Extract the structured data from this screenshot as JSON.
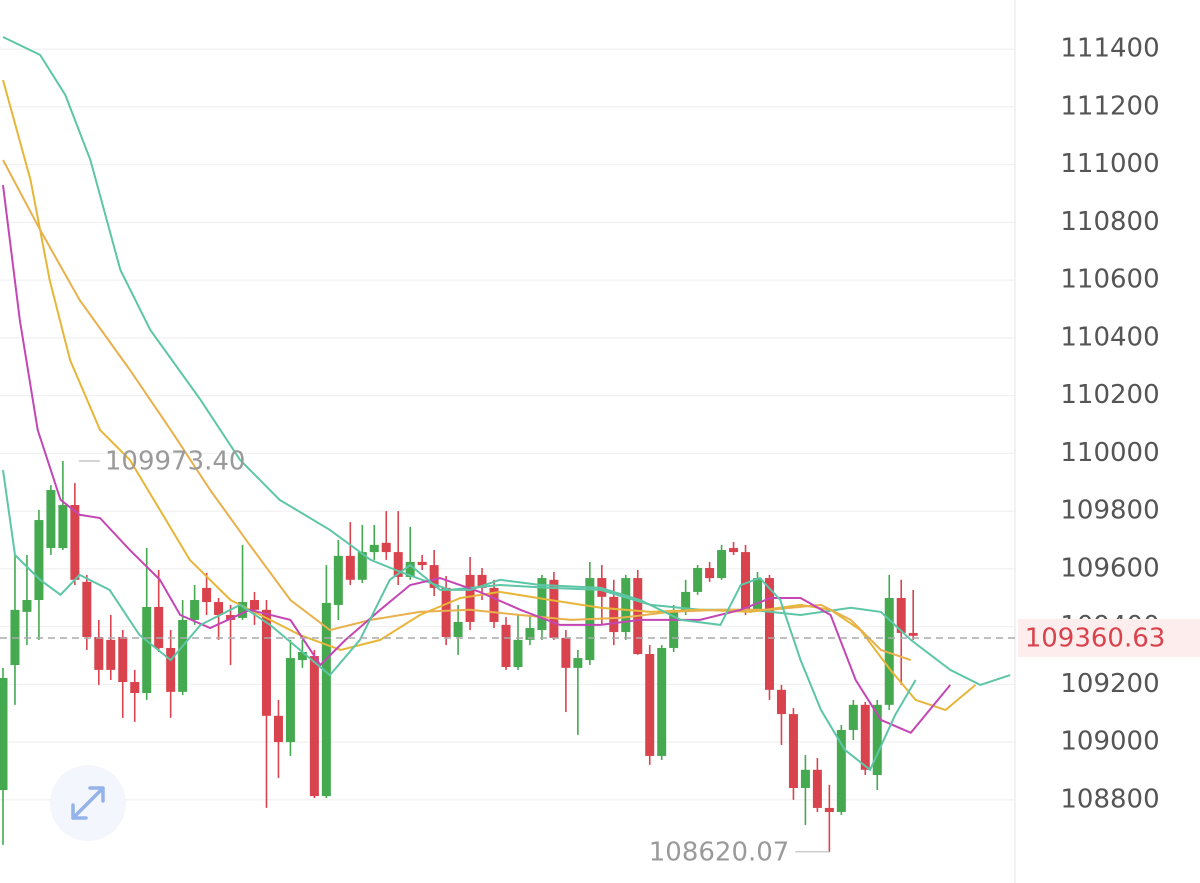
{
  "chart_data": {
    "type": "candlestick",
    "open": [
      108834,
      109267,
      109451,
      109492,
      109672,
      109672,
      109821,
      109555,
      109364,
      109354,
      109364,
      109208,
      109170,
      109468,
      109326,
      109174,
      109423,
      109534,
      109485,
      109440,
      109430,
      109492,
      109458,
      109091,
      109000,
      109284,
      109298,
      108813,
      109475,
      109645,
      109562,
      109658,
      109690,
      109658,
      109572,
      109624,
      109613,
      109534,
      109364,
      109579,
      109579,
      109534,
      109406,
      109260,
      109354,
      109388,
      109562,
      109361,
      109257,
      109284,
      109568,
      109503,
      109381,
      109568,
      109305,
      108952,
      109326,
      109451,
      109520,
      109603,
      109568,
      109672,
      109658,
      109458,
      109568,
      109181,
      109097,
      108841,
      108904,
      108772,
      108758,
      109042,
      109129,
      108886,
      109129,
      109499,
      109378
    ],
    "high": [
      109257,
      109648,
      109648,
      109804,
      109890,
      109973.4,
      109897,
      109579,
      109423,
      109440,
      109388,
      109250,
      109672,
      109596,
      109388,
      109492,
      109544,
      109586,
      109499,
      109475,
      109683,
      109520,
      109492,
      109146,
      109354,
      109354,
      109319,
      109613,
      109700,
      109762,
      109752,
      109752,
      109800,
      109800,
      109745,
      109648,
      109665,
      109575,
      109475,
      109641,
      109603,
      109562,
      109433,
      109440,
      109440,
      109579,
      109589,
      109388,
      109319,
      109624,
      109613,
      109562,
      109579,
      109596,
      109336,
      109336,
      109475,
      109562,
      109613,
      109624,
      109683,
      109693,
      109683,
      109589,
      109579,
      109198,
      109118,
      108955,
      108945,
      108852,
      109059,
      109146,
      109139,
      109146,
      109579,
      109562,
      109527
    ],
    "low": [
      108644,
      109129,
      109336,
      109354,
      109648,
      109665,
      109544,
      109319,
      109198,
      109215,
      109084,
      109070,
      109146,
      109312,
      109084,
      109163,
      109406,
      109440,
      109354,
      109267,
      109423,
      109406,
      108772,
      108876,
      108952,
      109257,
      108806,
      108806,
      109423,
      109544,
      109551,
      109631,
      109631,
      109544,
      109562,
      109596,
      109506,
      109336,
      109302,
      109388,
      109492,
      109395,
      109250,
      109250,
      109336,
      109354,
      109354,
      109104,
      109025,
      109267,
      109406,
      109336,
      109354,
      109302,
      108921,
      108938,
      109312,
      109440,
      109510,
      109555,
      109562,
      109648,
      109440,
      109451,
      109146,
      108990,
      108800,
      108713,
      108758,
      108620.07,
      108748,
      109007,
      108886,
      108834,
      109111,
      109198,
      109354
    ],
    "close": [
      109222,
      109458,
      109492,
      109769,
      109873,
      109821,
      109562,
      109364,
      109250,
      109250,
      109208,
      109170,
      109468,
      109326,
      109174,
      109423,
      109492,
      109485,
      109440,
      109423,
      109485,
      109458,
      109091,
      109000,
      109291,
      109312,
      108813,
      109482,
      109645,
      109562,
      109658,
      109683,
      109658,
      109572,
      109624,
      109613,
      109534,
      109364,
      109416,
      109416,
      109534,
      109416,
      109260,
      109354,
      109395,
      109568,
      109361,
      109257,
      109291,
      109568,
      109503,
      109381,
      109568,
      109305,
      108952,
      109326,
      109451,
      109520,
      109603,
      109568,
      109665,
      109658,
      109458,
      109568,
      109181,
      109097,
      108841,
      108904,
      108772,
      108758,
      109042,
      109129,
      108904,
      109129,
      109499,
      109378,
      109368
    ],
    "up_color": "#45a94f",
    "down_color": "#d9434e",
    "lines": [
      {
        "color": "#5cc6a6",
        "x": [
          0,
          3.1,
          5.2,
          7.3,
          9.8,
          12.3,
          16.5,
          19.8,
          23.1,
          27.3,
          30.7,
          33.2,
          37.3,
          41.5,
          45.7,
          49.9,
          54.1,
          58.2,
          62.4,
          66.6,
          70.8,
          73.3,
          75.8,
          79.1,
          81.6,
          84.1
        ],
        "values": [
          111442,
          111380,
          111241,
          111016,
          110635,
          110427,
          110185,
          109977,
          109839,
          109735,
          109631,
          109589,
          109527,
          109544,
          109534,
          109527,
          109475,
          109458,
          109458,
          109440,
          109465,
          109451,
          109354,
          109250,
          109198,
          109232
        ]
      },
      {
        "color": "#e6b638",
        "x": [
          0,
          2.3,
          3.9,
          5.6,
          8.1,
          10.6,
          13.1,
          15.6,
          19.0,
          22.3,
          24.8,
          28.2,
          31.5,
          34.8,
          38.2,
          41.5,
          45.7,
          49.9,
          54.1,
          58.2,
          62.4,
          66.6,
          69.1,
          71.6,
          74.1,
          76.2,
          78.7,
          81.2
        ],
        "values": [
          111293,
          110947,
          110600,
          110323,
          110081,
          109977,
          109804,
          109631,
          109492,
          109423,
          109371,
          109319,
          109354,
          109440,
          109499,
          109520,
          109492,
          109465,
          109451,
          109458,
          109451,
          109475,
          109458,
          109388,
          109250,
          109146,
          109111,
          109198
        ]
      },
      {
        "color": "#e9b04c",
        "x": [
          0,
          3.1,
          6.4,
          10.6,
          14.0,
          17.3,
          20.6,
          24.0,
          27.3,
          30.7,
          34.8,
          39.0,
          43.2,
          47.4,
          51.5,
          55.7,
          59.9,
          64.1,
          68.3,
          70.8,
          73.3,
          75.8
        ],
        "values": [
          111016,
          110774,
          110531,
          110289,
          110081,
          109873,
          109683,
          109492,
          109388,
          109423,
          109451,
          109458,
          109440,
          109423,
          109430,
          109451,
          109458,
          109458,
          109475,
          109423,
          109319,
          109284
        ]
      },
      {
        "color": "#c446b5",
        "x": [
          0,
          1.4,
          2.9,
          4.8,
          6.4,
          8.1,
          10.6,
          13.1,
          14.8,
          17.3,
          20.6,
          24.0,
          26.5,
          28.6,
          31.5,
          34.0,
          36.5,
          39.8,
          43.2,
          46.5,
          49.9,
          53.2,
          58.2,
          61.6,
          64.1,
          66.6,
          69.1,
          71.2,
          73.3,
          75.8,
          79.1
        ],
        "values": [
          110929,
          110462,
          110081,
          109839,
          109787,
          109776,
          109665,
          109562,
          109440,
          109395,
          109458,
          109423,
          109267,
          109354,
          109458,
          109544,
          109568,
          109520,
          109458,
          109406,
          109406,
          109423,
          109423,
          109458,
          109499,
          109499,
          109440,
          109215,
          109077,
          109032,
          109198
        ]
      },
      {
        "color": "#5cc6a6",
        "x": [
          0,
          1.0,
          3.1,
          4.8,
          6.4,
          8.9,
          11.4,
          14.0,
          16.5,
          19.8,
          22.3,
          24.8,
          27.3,
          29.8,
          32.3,
          34.0,
          36.5,
          39.0,
          41.5,
          44.9,
          49.9,
          53.2,
          56.6,
          59.9,
          61.6,
          63.2,
          64.9,
          66.6,
          68.3,
          70.3,
          72.4,
          74.5,
          76.2
        ],
        "values": [
          109942,
          109648,
          109562,
          109510,
          109579,
          109527,
          109371,
          109284,
          109406,
          109475,
          109406,
          109319,
          109232,
          109354,
          109562,
          109613,
          109527,
          109527,
          109562,
          109544,
          109534,
          109492,
          109423,
          109406,
          109544,
          109568,
          109492,
          109284,
          109111,
          108973,
          108904,
          109094,
          109215
        ]
      }
    ],
    "xlim": [
      -0.25,
      84.5
    ],
    "ylim": [
      108512,
      111570
    ],
    "yticks": [
      108800,
      109000,
      109200,
      109400,
      109600,
      109800,
      110000,
      110200,
      110400,
      110600,
      110800,
      111000,
      111200,
      111400
    ],
    "grid": true,
    "max_label": "109973.40",
    "min_label": "108620.07",
    "last_price": {
      "value": 109360.63,
      "label": "109360.63"
    }
  }
}
